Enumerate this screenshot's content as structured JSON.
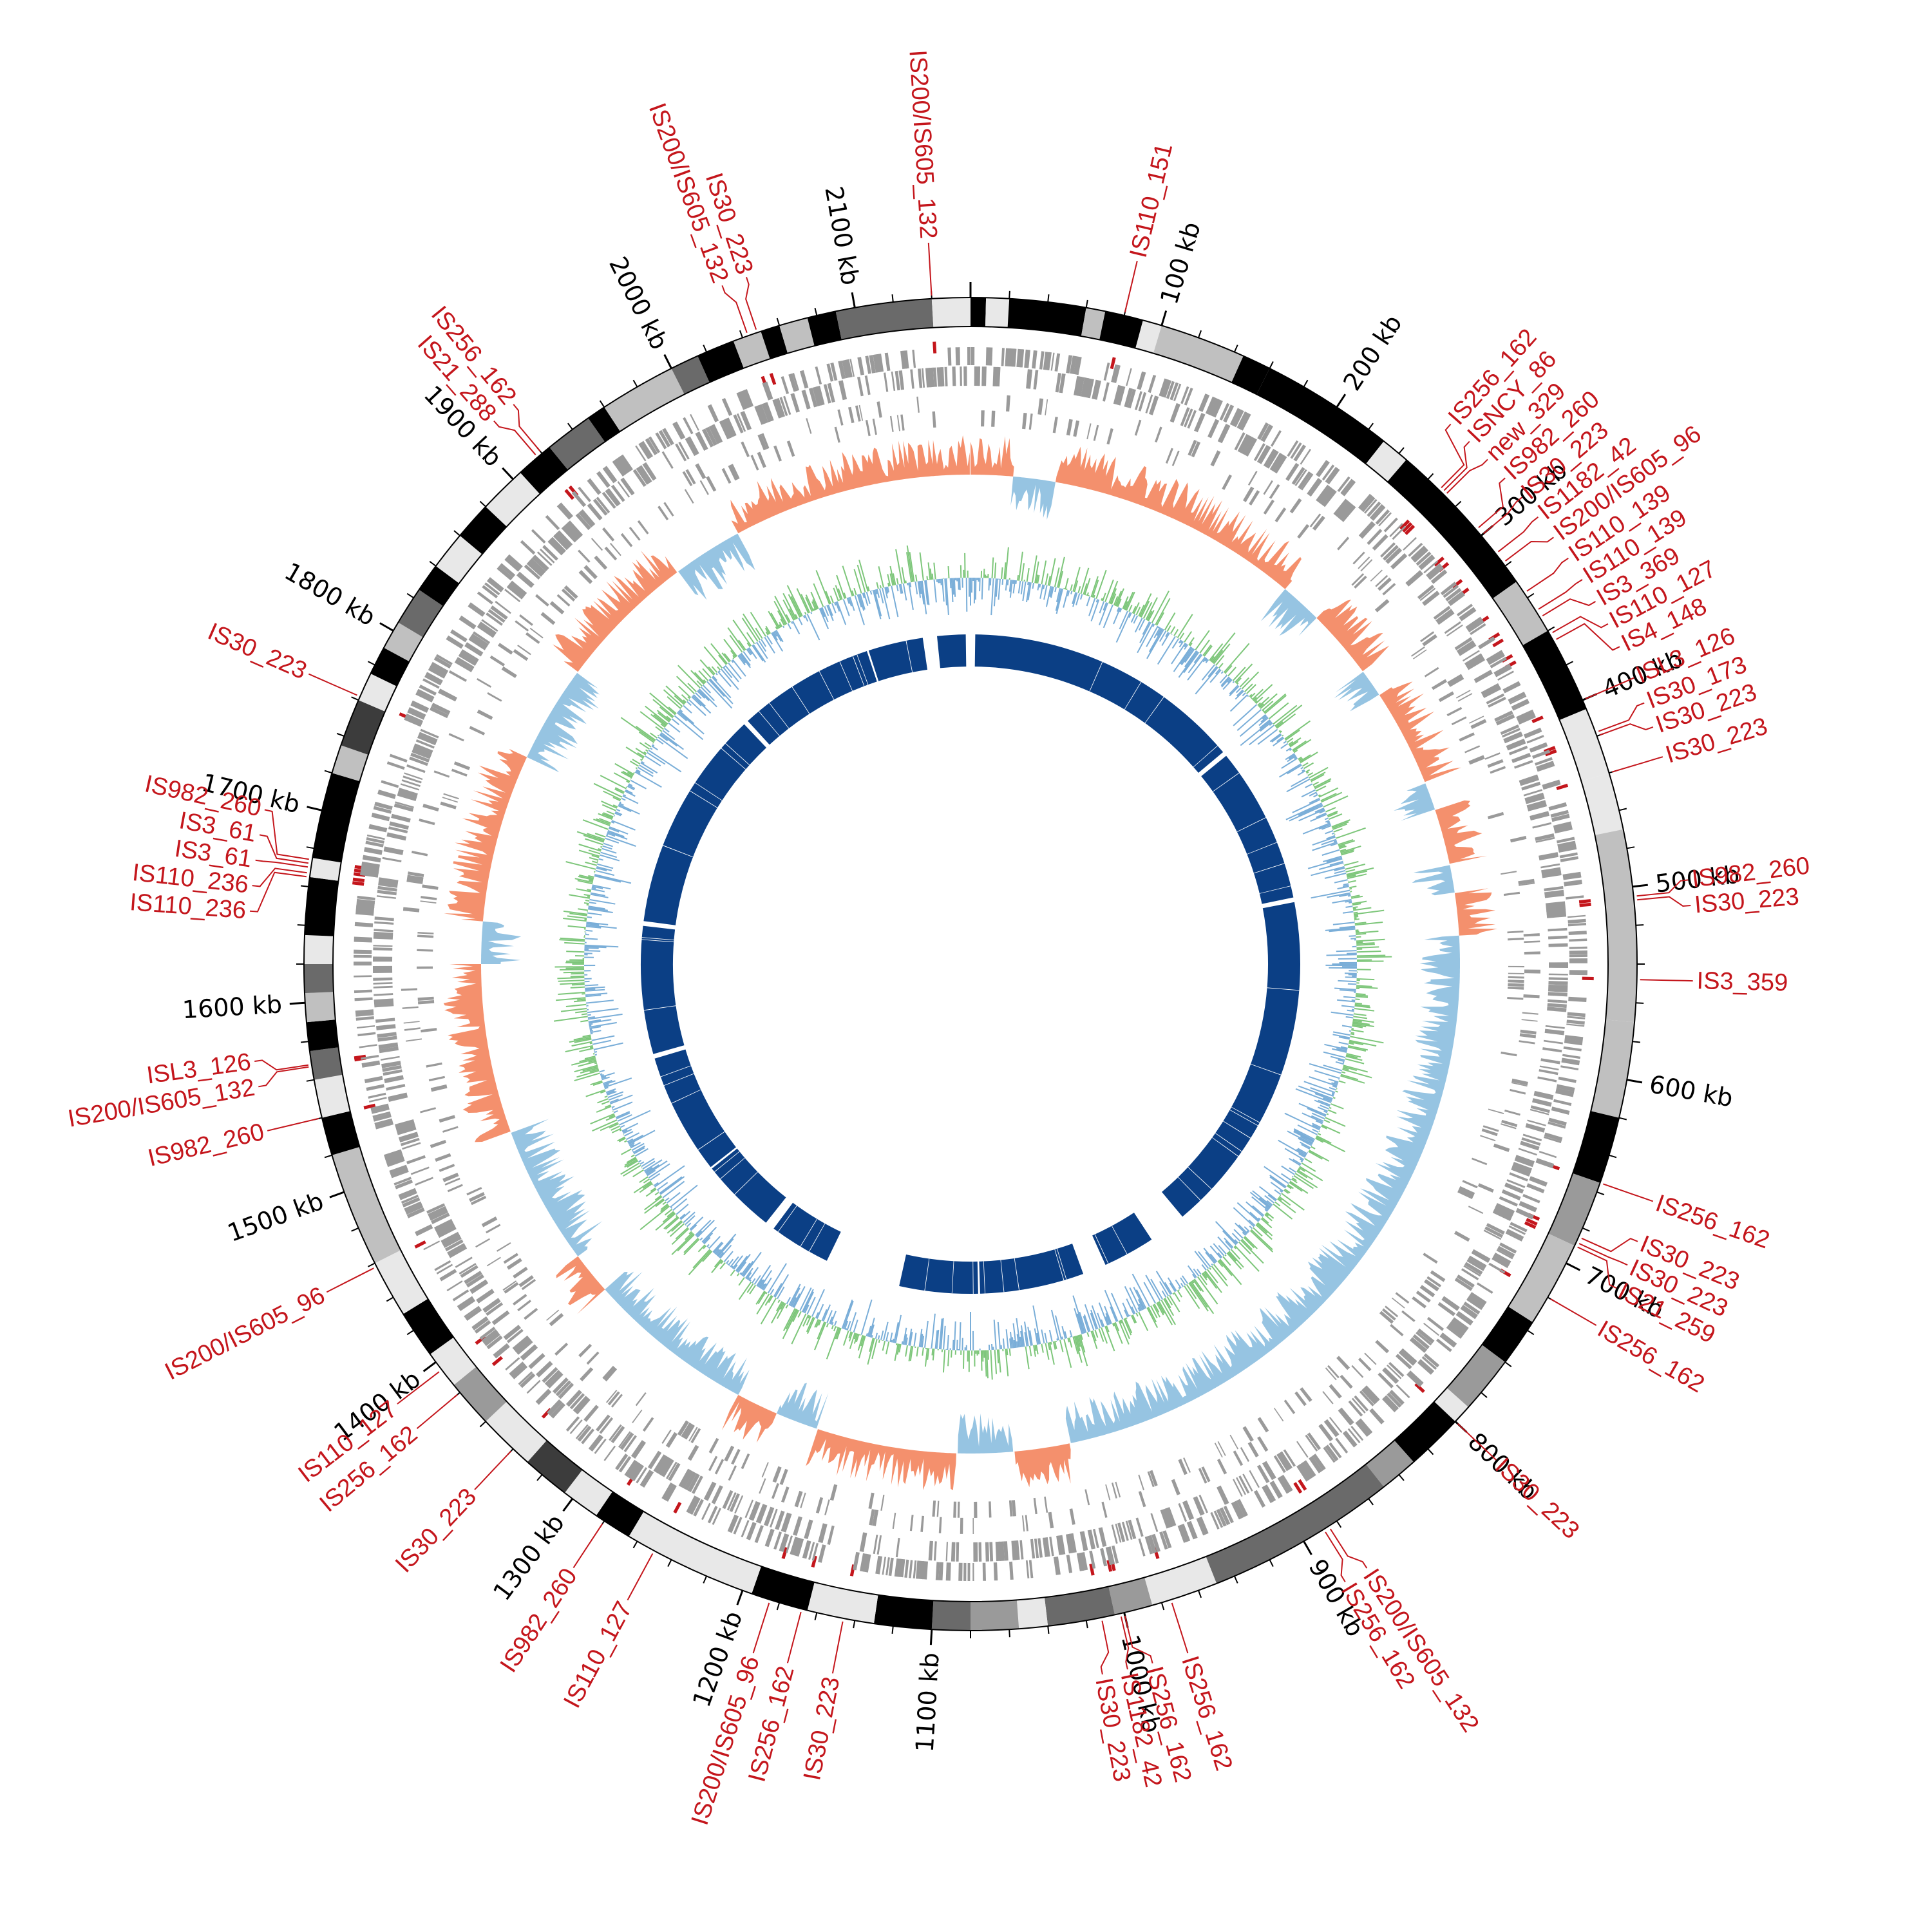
{
  "colors": {
    "is_red": "#c4161c",
    "gene_grey": "#9a9a9a",
    "gc_skew_pos": "#f4906d",
    "gc_skew_neg": "#96c4e2",
    "gc_content_green": "#7dc67a",
    "gc_content_blue": "#7aaed8",
    "inner_blue": "#0b3f85",
    "ideogram_shades": [
      "#000000",
      "#3c3c3c",
      "#6a6a6a",
      "#9a9a9a",
      "#c0c0c0",
      "#e8e8e8"
    ]
  },
  "chart_data": {
    "type": "circos",
    "genome_length_kb": 2160,
    "tick_labels": [
      {
        "kb": 100,
        "text": "100 kb"
      },
      {
        "kb": 200,
        "text": "200 kb"
      },
      {
        "kb": 300,
        "text": "300 kb"
      },
      {
        "kb": 400,
        "text": "400 kb"
      },
      {
        "kb": 500,
        "text": "500 kb"
      },
      {
        "kb": 600,
        "text": "600 kb"
      },
      {
        "kb": 700,
        "text": "700 kb"
      },
      {
        "kb": 800,
        "text": "800 kb"
      },
      {
        "kb": 900,
        "text": "900 kb"
      },
      {
        "kb": 1000,
        "text": "1000 kb"
      },
      {
        "kb": 1100,
        "text": "1100 kb"
      },
      {
        "kb": 1200,
        "text": "1200 kb"
      },
      {
        "kb": 1300,
        "text": "1300 kb"
      },
      {
        "kb": 1400,
        "text": "1400 kb"
      },
      {
        "kb": 1500,
        "text": "1500 kb"
      },
      {
        "kb": 1600,
        "text": "1600 kb"
      },
      {
        "kb": 1700,
        "text": "1700 kb"
      },
      {
        "kb": 1800,
        "text": "1800 kb"
      },
      {
        "kb": 1900,
        "text": "1900 kb"
      },
      {
        "kb": 2000,
        "text": "2000 kb"
      },
      {
        "kb": 2100,
        "text": "2100 kb"
      }
    ],
    "ideogram_bands": [
      {
        "start": 0,
        "end": 8,
        "shade": 0
      },
      {
        "start": 8,
        "end": 20,
        "shade": 5
      },
      {
        "start": 20,
        "end": 60,
        "shade": 0
      },
      {
        "start": 60,
        "end": 70,
        "shade": 4
      },
      {
        "start": 70,
        "end": 90,
        "shade": 0
      },
      {
        "start": 90,
        "end": 100,
        "shade": 5
      },
      {
        "start": 100,
        "end": 145,
        "shade": 4
      },
      {
        "start": 145,
        "end": 160,
        "shade": 0
      },
      {
        "start": 160,
        "end": 230,
        "shade": 0
      },
      {
        "start": 230,
        "end": 245,
        "shade": 5
      },
      {
        "start": 245,
        "end": 330,
        "shade": 0
      },
      {
        "start": 330,
        "end": 360,
        "shade": 4
      },
      {
        "start": 360,
        "end": 405,
        "shade": 0
      },
      {
        "start": 405,
        "end": 440,
        "shade": 5
      },
      {
        "start": 440,
        "end": 470,
        "shade": 5
      },
      {
        "start": 470,
        "end": 570,
        "shade": 4
      },
      {
        "start": 570,
        "end": 620,
        "shade": 4
      },
      {
        "start": 620,
        "end": 655,
        "shade": 0
      },
      {
        "start": 655,
        "end": 690,
        "shade": 3
      },
      {
        "start": 690,
        "end": 735,
        "shade": 4
      },
      {
        "start": 735,
        "end": 760,
        "shade": 0
      },
      {
        "start": 760,
        "end": 790,
        "shade": 3
      },
      {
        "start": 790,
        "end": 800,
        "shade": 5
      },
      {
        "start": 800,
        "end": 830,
        "shade": 0
      },
      {
        "start": 830,
        "end": 850,
        "shade": 3
      },
      {
        "start": 850,
        "end": 950,
        "shade": 2
      },
      {
        "start": 950,
        "end": 985,
        "shade": 5
      },
      {
        "start": 985,
        "end": 1005,
        "shade": 3
      },
      {
        "start": 1005,
        "end": 1040,
        "shade": 2
      },
      {
        "start": 1040,
        "end": 1055,
        "shade": 5
      },
      {
        "start": 1055,
        "end": 1080,
        "shade": 3
      },
      {
        "start": 1080,
        "end": 1100,
        "shade": 2
      },
      {
        "start": 1100,
        "end": 1130,
        "shade": 0
      },
      {
        "start": 1130,
        "end": 1165,
        "shade": 5
      },
      {
        "start": 1165,
        "end": 1195,
        "shade": 0
      },
      {
        "start": 1195,
        "end": 1265,
        "shade": 5
      },
      {
        "start": 1265,
        "end": 1285,
        "shade": 0
      },
      {
        "start": 1285,
        "end": 1305,
        "shade": 5
      },
      {
        "start": 1305,
        "end": 1330,
        "shade": 1
      },
      {
        "start": 1330,
        "end": 1360,
        "shade": 5
      },
      {
        "start": 1360,
        "end": 1385,
        "shade": 3
      },
      {
        "start": 1385,
        "end": 1405,
        "shade": 5
      },
      {
        "start": 1405,
        "end": 1430,
        "shade": 0
      },
      {
        "start": 1430,
        "end": 1460,
        "shade": 5
      },
      {
        "start": 1460,
        "end": 1520,
        "shade": 4
      },
      {
        "start": 1520,
        "end": 1540,
        "shade": 0
      },
      {
        "start": 1540,
        "end": 1560,
        "shade": 5
      },
      {
        "start": 1560,
        "end": 1575,
        "shade": 2
      },
      {
        "start": 1575,
        "end": 1590,
        "shade": 0
      },
      {
        "start": 1590,
        "end": 1605,
        "shade": 4
      },
      {
        "start": 1605,
        "end": 1620,
        "shade": 2
      },
      {
        "start": 1620,
        "end": 1635,
        "shade": 5
      },
      {
        "start": 1635,
        "end": 1665,
        "shade": 0
      },
      {
        "start": 1665,
        "end": 1675,
        "shade": 5
      },
      {
        "start": 1675,
        "end": 1720,
        "shade": 0
      },
      {
        "start": 1720,
        "end": 1735,
        "shade": 4
      },
      {
        "start": 1735,
        "end": 1760,
        "shade": 1
      },
      {
        "start": 1760,
        "end": 1775,
        "shade": 5
      },
      {
        "start": 1775,
        "end": 1790,
        "shade": 0
      },
      {
        "start": 1790,
        "end": 1805,
        "shade": 4
      },
      {
        "start": 1805,
        "end": 1825,
        "shade": 2
      },
      {
        "start": 1825,
        "end": 1840,
        "shade": 0
      },
      {
        "start": 1840,
        "end": 1860,
        "shade": 5
      },
      {
        "start": 1860,
        "end": 1880,
        "shade": 0
      },
      {
        "start": 1880,
        "end": 1905,
        "shade": 5
      },
      {
        "start": 1905,
        "end": 1925,
        "shade": 0
      },
      {
        "start": 1925,
        "end": 1950,
        "shade": 2
      },
      {
        "start": 1950,
        "end": 1960,
        "shade": 0
      },
      {
        "start": 1960,
        "end": 2000,
        "shade": 4
      },
      {
        "start": 2000,
        "end": 2015,
        "shade": 2
      },
      {
        "start": 2015,
        "end": 2035,
        "shade": 0
      },
      {
        "start": 2035,
        "end": 2050,
        "shade": 4
      },
      {
        "start": 2050,
        "end": 2060,
        "shade": 0
      },
      {
        "start": 2060,
        "end": 2075,
        "shade": 4
      },
      {
        "start": 2075,
        "end": 2090,
        "shade": 0
      },
      {
        "start": 2090,
        "end": 2140,
        "shade": 2
      },
      {
        "start": 2140,
        "end": 2160,
        "shade": 5
      }
    ],
    "is_elements": [
      {
        "kb": 2140,
        "label": "IS200/IS605_132"
      },
      {
        "kb": 80,
        "label": "IS110_151"
      },
      {
        "kb": 268,
        "label": "IS256_162"
      },
      {
        "kb": 270,
        "label": "ISNCY_86"
      },
      {
        "kb": 272,
        "label": "new_329"
      },
      {
        "kb": 296,
        "label": "IS982_260"
      },
      {
        "kb": 300,
        "label": "IS30_223"
      },
      {
        "kb": 312,
        "label": "IS1182_42"
      },
      {
        "kb": 318,
        "label": "IS200/IS605_96"
      },
      {
        "kb": 337,
        "label": "IS110_139"
      },
      {
        "kb": 348,
        "label": "IS110_139"
      },
      {
        "kb": 352,
        "label": "IS3_369"
      },
      {
        "kb": 362,
        "label": "IS110_127"
      },
      {
        "kb": 366,
        "label": "IS4_148"
      },
      {
        "kb": 400,
        "label": "ISL3_126"
      },
      {
        "kb": 418,
        "label": "IS30_173"
      },
      {
        "kb": 420,
        "label": "IS30_223"
      },
      {
        "kb": 440,
        "label": "IS30_223"
      },
      {
        "kb": 505,
        "label": "IS982_260"
      },
      {
        "kb": 507,
        "label": "IS30_223"
      },
      {
        "kb": 548,
        "label": "IS3_359"
      },
      {
        "kb": 655,
        "label": "IS256_162"
      },
      {
        "kb": 685,
        "label": "IS30_223"
      },
      {
        "kb": 688,
        "label": "IS30_223"
      },
      {
        "kb": 690,
        "label": "IS21_259"
      },
      {
        "kb": 720,
        "label": "IS256_162"
      },
      {
        "kb": 800,
        "label": "IS30_223"
      },
      {
        "kb": 885,
        "label": "IS200/IS605_132"
      },
      {
        "kb": 888,
        "label": "IS256_162"
      },
      {
        "kb": 975,
        "label": "IS256_162"
      },
      {
        "kb": 1000,
        "label": "IS256_162"
      },
      {
        "kb": 1002,
        "label": "IS1182_42"
      },
      {
        "kb": 1012,
        "label": "IS30_223"
      },
      {
        "kb": 1146,
        "label": "IS30_223"
      },
      {
        "kb": 1168,
        "label": "IS256_162"
      },
      {
        "kb": 1185,
        "label": "IS200/IS605_96"
      },
      {
        "kb": 1250,
        "label": "IS110_127"
      },
      {
        "kb": 1280,
        "label": "IS982_260"
      },
      {
        "kb": 1340,
        "label": "IS30_223"
      },
      {
        "kb": 1380,
        "label": "IS256_162"
      },
      {
        "kb": 1395,
        "label": "IS110_127"
      },
      {
        "kb": 1458,
        "label": "IS200/IS605_96"
      },
      {
        "kb": 1540,
        "label": "IS982_260"
      },
      {
        "kb": 1567,
        "label": "IS200/IS605_132"
      },
      {
        "kb": 1568,
        "label": "ISL3_126"
      },
      {
        "kb": 1665,
        "label": "IS110_236"
      },
      {
        "kb": 1667,
        "label": "IS110_236"
      },
      {
        "kb": 1670,
        "label": "IS3_61"
      },
      {
        "kb": 1672,
        "label": "IS3_61"
      },
      {
        "kb": 1674,
        "label": "IS982_260"
      },
      {
        "kb": 1762,
        "label": "IS30_223"
      },
      {
        "kb": 1917,
        "label": "IS21_288"
      },
      {
        "kb": 1920,
        "label": "IS256_162"
      },
      {
        "kb": 2043,
        "label": "IS200/IS605_132"
      },
      {
        "kb": 2048,
        "label": "IS30_223"
      }
    ],
    "gc_skew_regions": [
      {
        "start": 0,
        "end": 30,
        "sign": "pos"
      },
      {
        "start": 30,
        "end": 60,
        "sign": "neg"
      },
      {
        "start": 60,
        "end": 240,
        "sign": "pos"
      },
      {
        "start": 240,
        "end": 270,
        "sign": "neg"
      },
      {
        "start": 270,
        "end": 320,
        "sign": "pos"
      },
      {
        "start": 320,
        "end": 340,
        "sign": "neg"
      },
      {
        "start": 340,
        "end": 410,
        "sign": "pos"
      },
      {
        "start": 410,
        "end": 430,
        "sign": "neg"
      },
      {
        "start": 430,
        "end": 470,
        "sign": "pos"
      },
      {
        "start": 470,
        "end": 490,
        "sign": "neg"
      },
      {
        "start": 490,
        "end": 520,
        "sign": "pos"
      },
      {
        "start": 520,
        "end": 1010,
        "sign": "neg"
      },
      {
        "start": 1010,
        "end": 1050,
        "sign": "pos"
      },
      {
        "start": 1050,
        "end": 1090,
        "sign": "neg"
      },
      {
        "start": 1090,
        "end": 1190,
        "sign": "pos"
      },
      {
        "start": 1190,
        "end": 1220,
        "sign": "neg"
      },
      {
        "start": 1220,
        "end": 1250,
        "sign": "pos"
      },
      {
        "start": 1250,
        "end": 1370,
        "sign": "neg"
      },
      {
        "start": 1370,
        "end": 1400,
        "sign": "pos"
      },
      {
        "start": 1400,
        "end": 1500,
        "sign": "neg"
      },
      {
        "start": 1500,
        "end": 1620,
        "sign": "pos"
      },
      {
        "start": 1620,
        "end": 1650,
        "sign": "neg"
      },
      {
        "start": 1650,
        "end": 1770,
        "sign": "pos"
      },
      {
        "start": 1770,
        "end": 1840,
        "sign": "neg"
      },
      {
        "start": 1840,
        "end": 1940,
        "sign": "pos"
      },
      {
        "start": 1940,
        "end": 1990,
        "sign": "neg"
      },
      {
        "start": 1990,
        "end": 2160,
        "sign": "pos"
      }
    ],
    "inner_blocks": [
      {
        "start": 5,
        "end": 300
      },
      {
        "start": 305,
        "end": 470
      },
      {
        "start": 475,
        "end": 840
      },
      {
        "start": 880,
        "end": 935
      },
      {
        "start": 960,
        "end": 1070
      },
      {
        "start": 1072,
        "end": 1155
      },
      {
        "start": 1235,
        "end": 1300
      },
      {
        "start": 1310,
        "end": 1390
      },
      {
        "start": 1392,
        "end": 1520
      },
      {
        "start": 1525,
        "end": 1660
      },
      {
        "start": 1665,
        "end": 1900
      },
      {
        "start": 1905,
        "end": 2050
      },
      {
        "start": 2052,
        "end": 2110
      },
      {
        "start": 2125,
        "end": 2155
      }
    ]
  }
}
